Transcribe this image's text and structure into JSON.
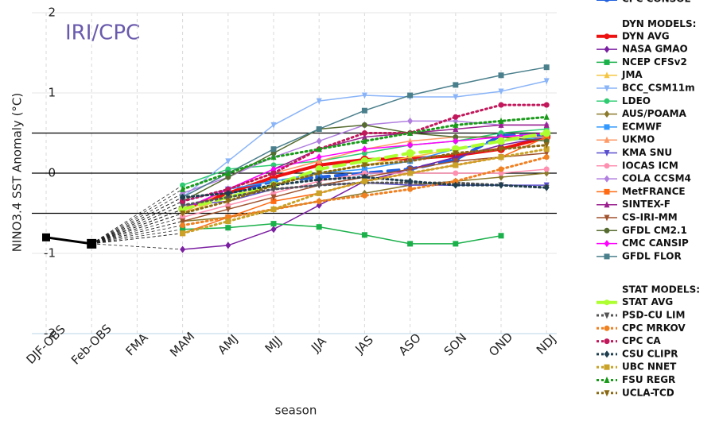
{
  "chart_data": {
    "type": "line",
    "annotation": "IRI/CPC",
    "x_label": "season",
    "y_label": "NINO3.4 SST Anomaly (°C)",
    "categories": [
      "DJF-OBS",
      "Feb-OBS",
      "FMA",
      "MAM",
      "AMJ",
      "MJJ",
      "JJA",
      "JAS",
      "ASO",
      "SON",
      "OND",
      "NDJ"
    ],
    "ylim": [
      -2,
      2
    ],
    "yticks": [
      -2,
      -1,
      0,
      1,
      2
    ],
    "reference_lines": [
      -0.5,
      0,
      0.5
    ],
    "grid": true,
    "observed": {
      "color": "#000000",
      "values": [
        -0.8,
        -0.88,
        null,
        null,
        null,
        null,
        null,
        null,
        null,
        null,
        null,
        null
      ]
    },
    "legend_headers": [
      "DYN MODELS:",
      "STAT MODELS:"
    ],
    "series": [
      {
        "name": "CPC CONSOL",
        "color": "#1f5fe0",
        "line_style": "bold-dashed",
        "marker": "circle",
        "group": null,
        "values": [
          null,
          null,
          null,
          -0.45,
          -0.25,
          -0.1,
          -0.05,
          0.0,
          0.05,
          0.17,
          0.47,
          0.47
        ]
      },
      {
        "name": "DYN AVG",
        "color": "#ee1111",
        "line_style": "bold",
        "marker": "circle",
        "group": 0,
        "values": [
          null,
          null,
          null,
          -0.45,
          -0.25,
          -0.05,
          0.1,
          0.17,
          0.18,
          0.22,
          0.3,
          0.45
        ]
      },
      {
        "name": "NASA GMAO",
        "color": "#7b1fa2",
        "line_style": "solid",
        "marker": "diamond",
        "group": 0,
        "values": [
          null,
          null,
          null,
          -0.95,
          -0.9,
          -0.7,
          -0.4,
          -0.1,
          0.05,
          0.2,
          0.35,
          0.45
        ]
      },
      {
        "name": "NCEP CFSv2",
        "color": "#1ab04a",
        "line_style": "solid",
        "marker": "square",
        "group": 0,
        "values": [
          null,
          null,
          null,
          -0.7,
          -0.68,
          -0.63,
          -0.67,
          -0.77,
          -0.88,
          -0.88,
          -0.78,
          null
        ]
      },
      {
        "name": "JMA",
        "color": "#f5c542",
        "line_style": "solid",
        "marker": "triangle",
        "group": 0,
        "values": [
          null,
          null,
          null,
          -0.5,
          -0.3,
          -0.15,
          0.0,
          0.1,
          0.2,
          0.3,
          0.4,
          0.45
        ]
      },
      {
        "name": "BCC_CSM11m",
        "color": "#8ab4f8",
        "line_style": "solid",
        "marker": "triangle-down",
        "group": 0,
        "values": [
          null,
          null,
          null,
          -0.3,
          0.15,
          0.6,
          0.9,
          0.97,
          0.95,
          0.95,
          1.02,
          1.15
        ]
      },
      {
        "name": "LDEO",
        "color": "#2ecc71",
        "line_style": "solid",
        "marker": "circle",
        "group": 0,
        "values": [
          null,
          null,
          null,
          -0.15,
          0.05,
          0.1,
          0.15,
          0.25,
          0.35,
          0.4,
          0.5,
          0.55
        ]
      },
      {
        "name": "AUS/POAMA",
        "color": "#8b7a2b",
        "line_style": "solid",
        "marker": "diamond",
        "group": 0,
        "values": [
          null,
          null,
          null,
          -0.6,
          -0.55,
          -0.45,
          -0.35,
          -0.25,
          -0.15,
          -0.1,
          -0.05,
          0.0
        ]
      },
      {
        "name": "ECMWF",
        "color": "#3399ff",
        "line_style": "solid",
        "marker": "square",
        "group": 0,
        "values": [
          null,
          null,
          null,
          -0.35,
          -0.2,
          -0.1,
          0.0,
          0.05,
          0.15,
          0.3,
          0.4,
          0.45
        ]
      },
      {
        "name": "UKMO",
        "color": "#ff9966",
        "line_style": "solid",
        "marker": "triangle",
        "group": 0,
        "values": [
          null,
          null,
          null,
          -0.5,
          -0.2,
          0.0,
          0.15,
          0.3,
          0.4,
          0.45,
          0.45,
          0.45
        ]
      },
      {
        "name": "KMA SNU",
        "color": "#5a4fcf",
        "line_style": "solid",
        "marker": "triangle-down",
        "group": 0,
        "values": [
          null,
          null,
          null,
          -0.4,
          -0.35,
          -0.2,
          -0.15,
          -0.12,
          -0.15,
          -0.15,
          -0.15,
          -0.15
        ]
      },
      {
        "name": "IOCAS ICM",
        "color": "#ff8fb0",
        "line_style": "solid",
        "marker": "circle",
        "group": 0,
        "values": [
          null,
          null,
          null,
          -0.55,
          -0.4,
          -0.25,
          -0.1,
          0.0,
          0.0,
          0.0,
          0.0,
          0.05
        ]
      },
      {
        "name": "COLA CCSM4",
        "color": "#b07fe0",
        "line_style": "solid",
        "marker": "diamond",
        "group": 0,
        "values": [
          null,
          null,
          null,
          -0.25,
          -0.05,
          0.2,
          0.4,
          0.6,
          0.65,
          0.65,
          0.6,
          0.6
        ]
      },
      {
        "name": "MetFRANCE",
        "color": "#ff6a13",
        "line_style": "solid",
        "marker": "square",
        "group": 0,
        "values": [
          null,
          null,
          null,
          -0.75,
          -0.55,
          -0.35,
          -0.25,
          -0.1,
          0.0,
          0.1,
          0.2,
          0.45
        ]
      },
      {
        "name": "SINTEX-F",
        "color": "#9b1f8f",
        "line_style": "solid",
        "marker": "triangle",
        "group": 0,
        "values": [
          null,
          null,
          null,
          -0.45,
          -0.2,
          0.05,
          0.3,
          0.45,
          0.5,
          0.55,
          0.6,
          0.6
        ]
      },
      {
        "name": "CS-IRI-MM",
        "color": "#a0522d",
        "line_style": "solid",
        "marker": "triangle-down",
        "group": 0,
        "values": [
          null,
          null,
          null,
          -0.6,
          -0.45,
          -0.3,
          -0.15,
          -0.05,
          0.05,
          0.15,
          0.2,
          0.25
        ]
      },
      {
        "name": "GFDL CM2.1",
        "color": "#556b2f",
        "line_style": "solid",
        "marker": "circle",
        "group": 0,
        "values": [
          null,
          null,
          null,
          -0.35,
          -0.05,
          0.25,
          0.55,
          0.6,
          0.5,
          0.45,
          0.45,
          0.4
        ]
      },
      {
        "name": "CMC CANSIP",
        "color": "#ff00ff",
        "line_style": "solid",
        "marker": "diamond",
        "group": 0,
        "values": [
          null,
          null,
          null,
          -0.45,
          -0.2,
          0.05,
          0.2,
          0.3,
          0.35,
          0.4,
          0.45,
          0.5
        ]
      },
      {
        "name": "GFDL FLOR",
        "color": "#4a7f8c",
        "line_style": "solid",
        "marker": "square",
        "group": 0,
        "values": [
          null,
          null,
          null,
          -0.3,
          0.0,
          0.3,
          0.55,
          0.78,
          0.97,
          1.1,
          1.22,
          1.32
        ]
      },
      {
        "name": "STAT AVG",
        "color": "#adff2f",
        "line_style": "bold-dashed",
        "marker": "circle",
        "group": 1,
        "values": [
          null,
          null,
          null,
          -0.45,
          -0.3,
          -0.15,
          0.05,
          0.15,
          0.25,
          0.3,
          0.4,
          0.5
        ]
      },
      {
        "name": "PSD-CU LIM",
        "color": "#555555",
        "line_style": "dotted",
        "marker": "triangle-down",
        "group": 1,
        "values": [
          null,
          null,
          null,
          -0.4,
          -0.3,
          -0.2,
          -0.15,
          -0.12,
          -0.12,
          -0.12,
          -0.15,
          -0.18
        ]
      },
      {
        "name": "CPC MRKOV",
        "color": "#f08020",
        "line_style": "dotted",
        "marker": "circle",
        "group": 1,
        "values": [
          null,
          null,
          null,
          -0.65,
          -0.55,
          -0.45,
          -0.35,
          -0.28,
          -0.2,
          -0.1,
          0.05,
          0.2
        ]
      },
      {
        "name": "CPC CA",
        "color": "#c2185b",
        "line_style": "dotted",
        "marker": "circle",
        "group": 1,
        "values": [
          null,
          null,
          null,
          -0.35,
          -0.2,
          0.0,
          0.3,
          0.5,
          0.5,
          0.7,
          0.85,
          0.85
        ]
      },
      {
        "name": "CSU CLIPR",
        "color": "#1f3f4f",
        "line_style": "dotted",
        "marker": "diamond",
        "group": 1,
        "values": [
          null,
          null,
          null,
          -0.3,
          -0.25,
          -0.15,
          -0.08,
          -0.05,
          -0.1,
          -0.15,
          -0.15,
          -0.18
        ]
      },
      {
        "name": "UBC NNET",
        "color": "#c9a227",
        "line_style": "dotted",
        "marker": "square",
        "group": 1,
        "values": [
          null,
          null,
          null,
          -0.75,
          -0.6,
          -0.45,
          -0.25,
          -0.1,
          0.0,
          0.1,
          0.2,
          0.3
        ]
      },
      {
        "name": "FSU REGR",
        "color": "#1a9a1a",
        "line_style": "dotted",
        "marker": "triangle",
        "group": 1,
        "values": [
          null,
          null,
          null,
          -0.2,
          0.0,
          0.2,
          0.3,
          0.4,
          0.5,
          0.6,
          0.65,
          0.7
        ]
      },
      {
        "name": "UCLA-TCD",
        "color": "#8b6914",
        "line_style": "dotted",
        "marker": "triangle-down",
        "group": 1,
        "values": [
          null,
          null,
          null,
          -0.5,
          -0.35,
          -0.15,
          0.0,
          0.1,
          0.15,
          0.25,
          0.3,
          0.35
        ]
      }
    ]
  }
}
